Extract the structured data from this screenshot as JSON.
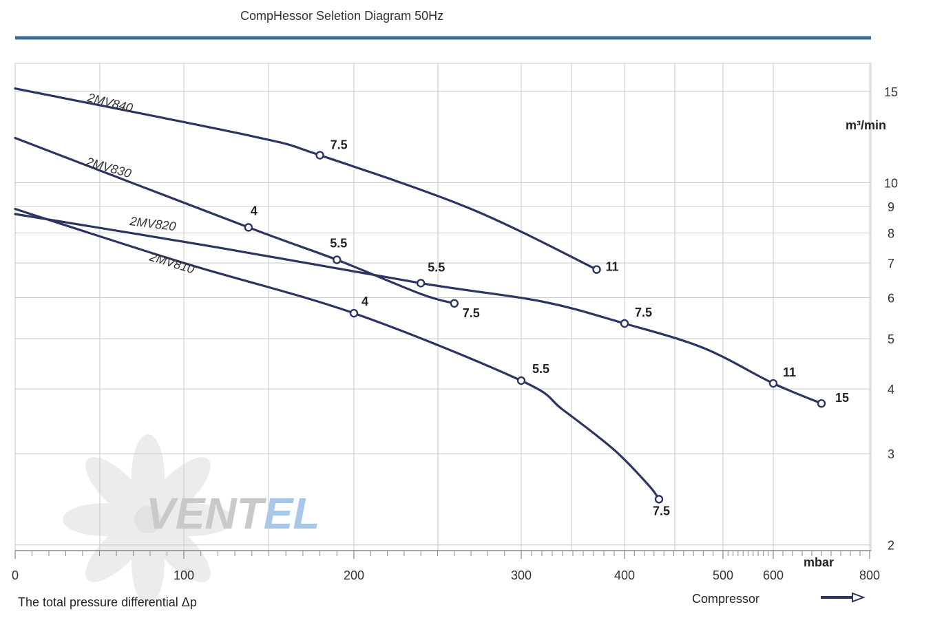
{
  "colors": {
    "curve": "#2c3461",
    "rule": "#3d6c9c",
    "grid": "#c8c8c8",
    "axis": "#888888",
    "watermark_gray": "#c9c9c9",
    "watermark_blue": "#a8c8e8",
    "fan": "#ececec"
  },
  "chart_data": {
    "type": "line",
    "title": "CompHessor Seletion Diagram 50Hz",
    "xlabel": "The total pressure differential Δp",
    "x_unit": "mbar",
    "y_unit": "m³/min",
    "x_scale": "piecewise-linear",
    "y_scale": "log",
    "x_ticks": [
      0,
      100,
      200,
      300,
      400,
      500,
      600,
      800
    ],
    "x_tick_labels": [
      "0",
      "100",
      "200",
      "300",
      "400",
      "500",
      "600",
      "800"
    ],
    "y_ticks": [
      2,
      3,
      4,
      5,
      6,
      7,
      8,
      9,
      10,
      15
    ],
    "y_tick_labels": [
      "2",
      "3",
      "4",
      "5",
      "6",
      "7",
      "8",
      "9",
      "10",
      "15"
    ],
    "ylim": [
      1.95,
      17
    ],
    "series": [
      {
        "name": "2MV840",
        "curve": [
          [
            0,
            15.2
          ],
          [
            140,
            12.3
          ],
          [
            180,
            11.3
          ],
          [
            270,
            8.9
          ],
          [
            373,
            6.8
          ]
        ],
        "points": [
          {
            "x": 180,
            "y": 11.3,
            "label": "7.5"
          },
          {
            "x": 373,
            "y": 6.8,
            "label": "11"
          }
        ]
      },
      {
        "name": "2MV830",
        "curve": [
          [
            0,
            12.2
          ],
          [
            138,
            8.2
          ],
          [
            190,
            7.1
          ],
          [
            240,
            6.1
          ],
          [
            260,
            5.85
          ]
        ],
        "points": [
          {
            "x": 138,
            "y": 8.2,
            "label": "4"
          },
          {
            "x": 190,
            "y": 7.1,
            "label": "5.5"
          },
          {
            "x": 260,
            "y": 5.85,
            "label": "7.5"
          }
        ]
      },
      {
        "name": "2MV820",
        "curve": [
          [
            0,
            8.7
          ],
          [
            120,
            7.5
          ],
          [
            240,
            6.4
          ],
          [
            320,
            5.9
          ],
          [
            400,
            5.35
          ],
          [
            480,
            4.8
          ],
          [
            600,
            4.1
          ],
          [
            700,
            3.75
          ]
        ],
        "points": [
          {
            "x": 240,
            "y": 6.4,
            "label": "5.5"
          },
          {
            "x": 400,
            "y": 5.35,
            "label": "7.5"
          },
          {
            "x": 600,
            "y": 4.1,
            "label": "11"
          },
          {
            "x": 700,
            "y": 3.75,
            "label": "15"
          }
        ]
      },
      {
        "name": "2MV810",
        "curve": [
          [
            0,
            8.9
          ],
          [
            100,
            7.0
          ],
          [
            200,
            5.6
          ],
          [
            300,
            4.15
          ],
          [
            340,
            3.65
          ],
          [
            390,
            3.05
          ],
          [
            425,
            2.6
          ],
          [
            435,
            2.45
          ]
        ],
        "points": [
          {
            "x": 200,
            "y": 5.6,
            "label": "4"
          },
          {
            "x": 300,
            "y": 4.15,
            "label": "5.5"
          },
          {
            "x": 435,
            "y": 2.45,
            "label": "7.5"
          }
        ]
      }
    ]
  },
  "footer": {
    "compressor_label": "Compressor"
  },
  "watermark": {
    "text_gray": "VENT",
    "text_blue": "EL"
  }
}
